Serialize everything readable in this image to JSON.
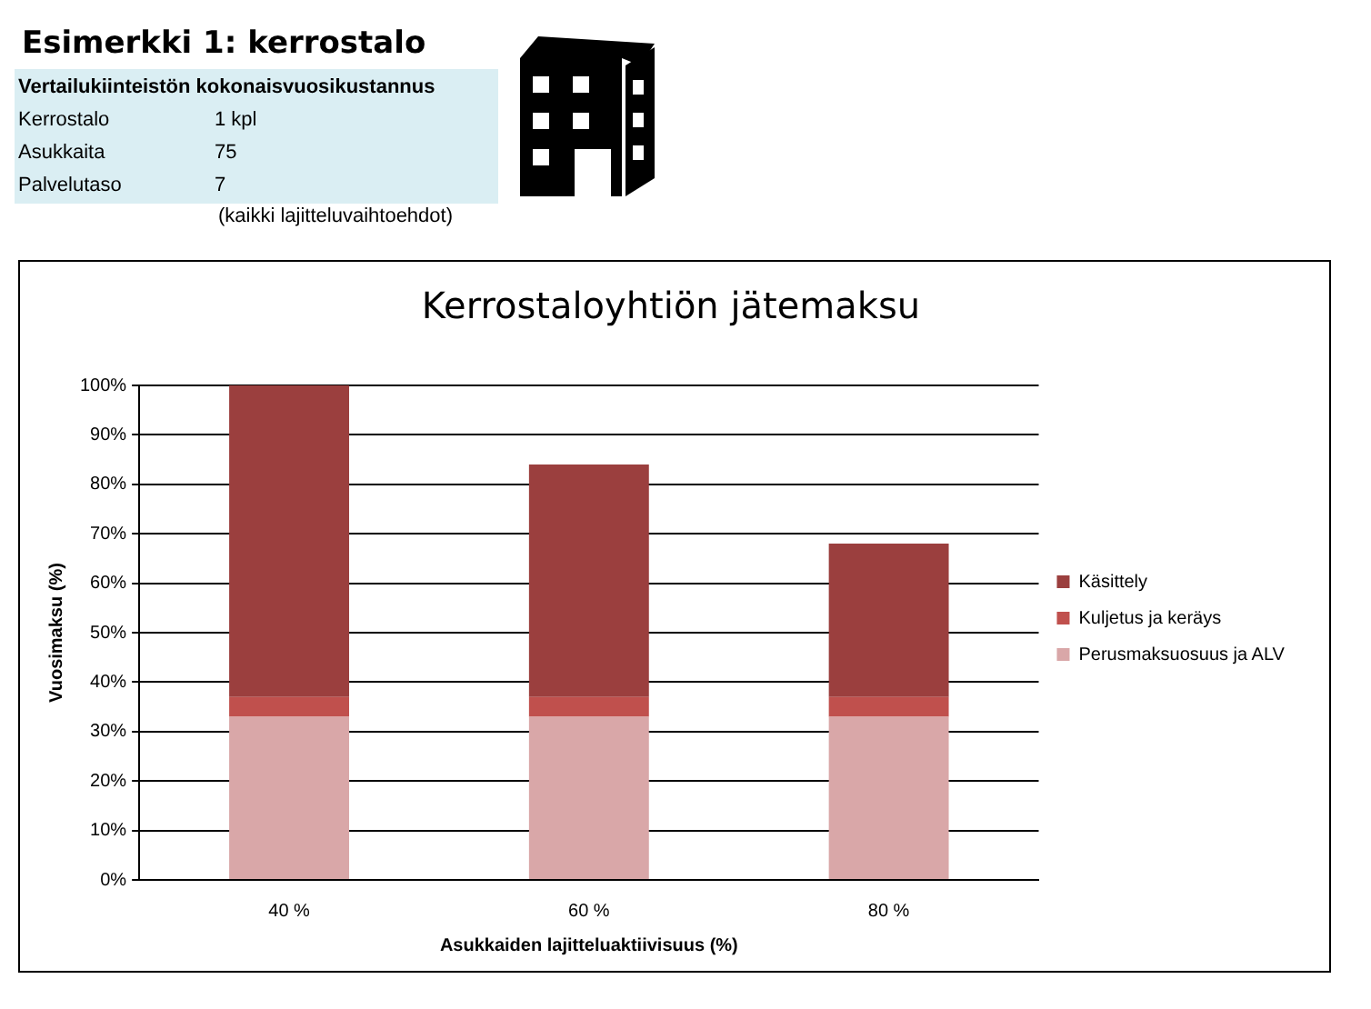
{
  "chart_data": {
    "type": "bar",
    "title": "Kerrostaloyhtiön jätemaksu",
    "xlabel": "Asukkaiden lajitteluaktiivisuus (%)",
    "ylabel": "Vuosimaksu (%)",
    "annotations": [
      "Esimerkki 1: kerrostalo",
      "Vertailukiinteistön kokonaisvuosikustannus",
      "Kerrostalo",
      "1 kpl",
      "Asukkaita",
      "75",
      "Palvelutaso",
      "7",
      "(kaikki lajitteluvaihtoehdot)"
    ],
    "categories": [
      "40 %",
      "60 %",
      "80 %"
    ],
    "stacked": true,
    "series": [
      {
        "name": "Perusmaksuosuus ja ALV",
        "color": "#d9a7a8",
        "values": [
          33,
          33,
          33
        ]
      },
      {
        "name": "Kuljetus ja keräys",
        "color": "#c0504d",
        "values": [
          4,
          4,
          4
        ]
      },
      {
        "name": "Käsittely",
        "color": "#9b3f3e",
        "values": [
          63,
          47,
          31
        ]
      }
    ],
    "ylim": [
      0,
      100
    ],
    "yticks": [
      {
        "value": 0,
        "label": "0%"
      },
      {
        "value": 10,
        "label": "10%"
      },
      {
        "value": 20,
        "label": "20%"
      },
      {
        "value": 30,
        "label": "30%"
      },
      {
        "value": 40,
        "label": "40%"
      },
      {
        "value": 50,
        "label": "50%"
      },
      {
        "value": 60,
        "label": "60%"
      },
      {
        "value": 70,
        "label": "70%"
      },
      {
        "value": 80,
        "label": "80%"
      },
      {
        "value": 90,
        "label": "90%"
      },
      {
        "value": 100,
        "label": "100%"
      }
    ],
    "grid": "y",
    "legend": "right"
  }
}
